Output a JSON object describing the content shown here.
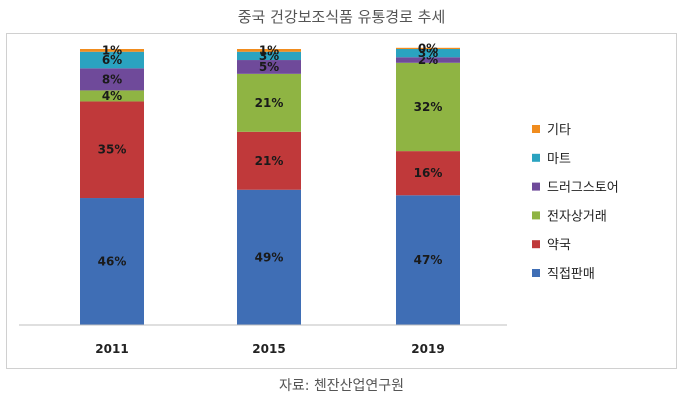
{
  "chart_data": {
    "type": "bar",
    "stacked": true,
    "title": "중국 건강보조식품 유통경로 추세",
    "categories": [
      "2011",
      "2015",
      "2019"
    ],
    "ylim": [
      0,
      100
    ],
    "series": [
      {
        "name": "직접판매",
        "color": "#3f6eb5",
        "values": [
          46,
          49,
          47
        ],
        "labels": [
          "46%",
          "49%",
          "47%"
        ]
      },
      {
        "name": "약국",
        "color": "#c0393a",
        "values": [
          35,
          21,
          16
        ],
        "labels": [
          "35%",
          "21%",
          "16%"
        ]
      },
      {
        "name": "전자상거래",
        "color": "#8fb443",
        "values": [
          4,
          21,
          32
        ],
        "labels": [
          "4%",
          "21%",
          "32%"
        ]
      },
      {
        "name": "드러그스토어",
        "color": "#6f4a9a",
        "values": [
          8,
          5,
          2
        ],
        "labels": [
          "8%",
          "5%",
          "2%"
        ]
      },
      {
        "name": "마트",
        "color": "#2aa3c0",
        "values": [
          6,
          3,
          3
        ],
        "labels": [
          "6%",
          "3%",
          "3%"
        ]
      },
      {
        "name": "기타",
        "color": "#f08c1e",
        "values": [
          1,
          1,
          0
        ],
        "labels": [
          "1%",
          "1%",
          "0%"
        ]
      }
    ],
    "legend_position": "right",
    "grid": false
  },
  "source_note": "자료: 첸잔산업연구원"
}
